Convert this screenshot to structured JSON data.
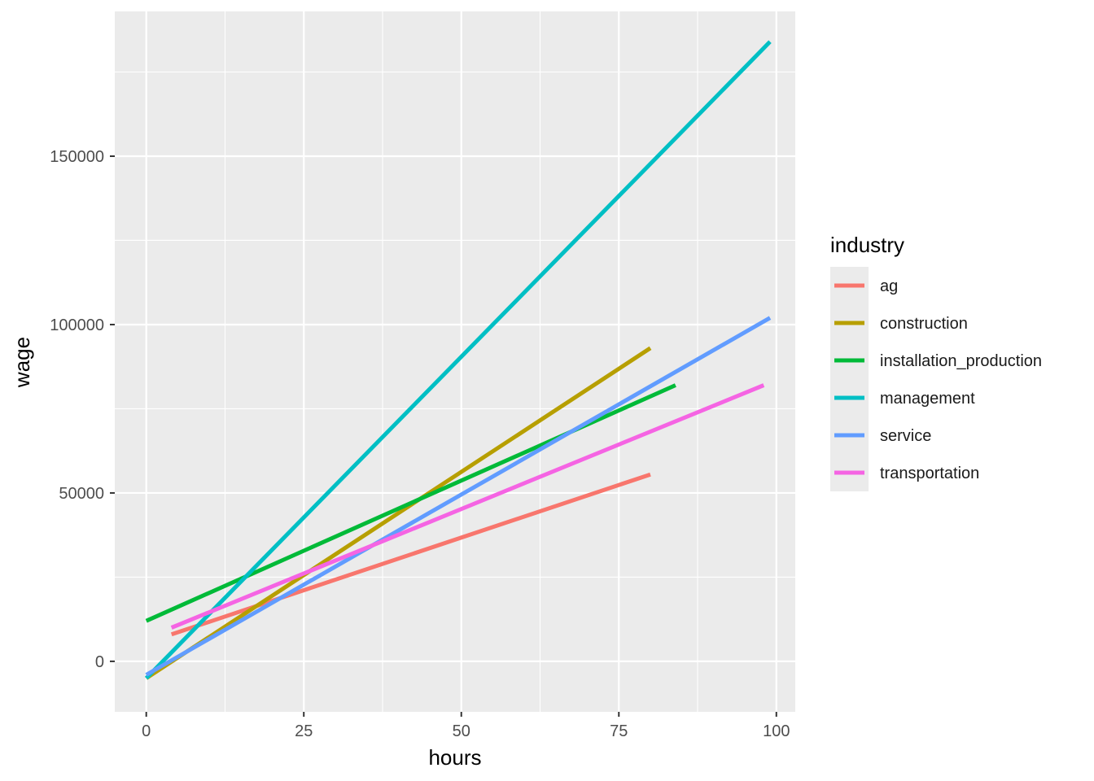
{
  "chart_data": {
    "type": "line",
    "xlabel": "hours",
    "ylabel": "wage",
    "xlim": [
      -5,
      103
    ],
    "ylim": [
      -15000,
      193000
    ],
    "x_ticks": [
      0,
      25,
      50,
      75,
      100
    ],
    "x_tick_labels": [
      "0",
      "25",
      "50",
      "75",
      "100"
    ],
    "y_ticks": [
      0,
      50000,
      100000,
      150000
    ],
    "y_tick_labels": [
      "0",
      "50000",
      "100000",
      "150000"
    ],
    "grid": true,
    "legend": {
      "title": "industry",
      "position": "right"
    },
    "series": [
      {
        "name": "ag",
        "color": "#F8766D",
        "x": [
          4,
          80
        ],
        "y": [
          8000,
          55500
        ]
      },
      {
        "name": "construction",
        "color": "#B79F00",
        "x": [
          0,
          80
        ],
        "y": [
          -5000,
          93000
        ]
      },
      {
        "name": "installation_production",
        "color": "#00BA38",
        "x": [
          0,
          84
        ],
        "y": [
          12000,
          82000
        ]
      },
      {
        "name": "management",
        "color": "#00BFC4",
        "x": [
          0,
          99
        ],
        "y": [
          -5000,
          184000
        ]
      },
      {
        "name": "service",
        "color": "#619CFF",
        "x": [
          0,
          99
        ],
        "y": [
          -4000,
          102000
        ]
      },
      {
        "name": "transportation",
        "color": "#F564E3",
        "x": [
          4,
          98
        ],
        "y": [
          10000,
          82000
        ]
      }
    ]
  }
}
